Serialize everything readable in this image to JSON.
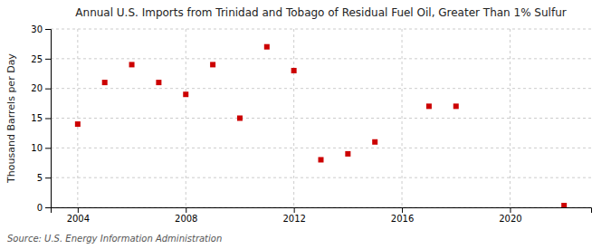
{
  "chart_data": {
    "type": "scatter",
    "title": "Annual U.S. Imports from Trinidad and Tobago of Residual Fuel Oil, Greater Than 1% Sulfur",
    "y_label": "Thousand Barrels per Day",
    "source": "Source: U.S. Energy Information Administration",
    "x": [
      2004,
      2005,
      2006,
      2007,
      2008,
      2009,
      2010,
      2011,
      2012,
      2013,
      2014,
      2015,
      2017,
      2018,
      2022
    ],
    "values": [
      14,
      21,
      24,
      21,
      19,
      24,
      15,
      27,
      23,
      8,
      9,
      11,
      17,
      17,
      0.3
    ],
    "color": "#cc0000",
    "marker": "square",
    "xlim": [
      2003,
      2023
    ],
    "ylim": [
      0,
      30
    ],
    "xticks": [
      2004,
      2008,
      2012,
      2016,
      2020
    ],
    "yticks": [
      0,
      5,
      10,
      15,
      20,
      25,
      30
    ],
    "grid": true
  }
}
